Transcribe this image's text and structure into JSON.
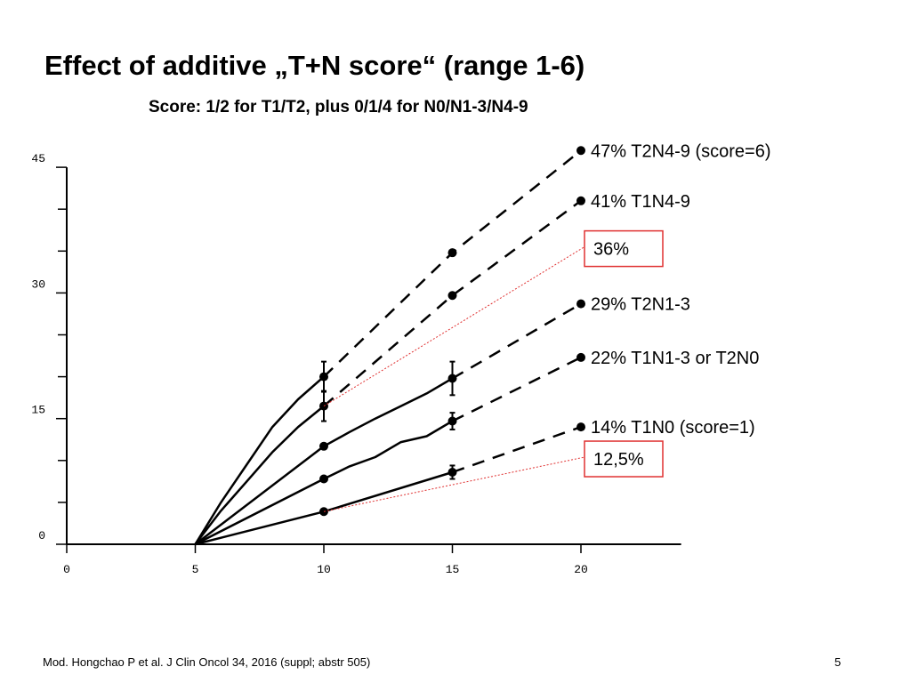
{
  "title": "Effect of additive „T+N score“ (range 1-6)",
  "subtitle": "Score: 1/2 for T1/T2, plus 0/1/4 for N0/N1-3/N4-9",
  "footer": {
    "reference": "Mod. Hongchao P et al. J Clin Oncol 34, 2016 (suppl; abstr 505)",
    "page_number": "5"
  },
  "chart_data": {
    "type": "line",
    "xlim": [
      0,
      24
    ],
    "ylim": [
      0,
      45
    ],
    "xticks": [
      0,
      5,
      10,
      15,
      20
    ],
    "yticks": [
      0,
      15,
      30,
      45
    ],
    "grid": false,
    "colors": {
      "series": "#000000",
      "highlight": "#e03030"
    },
    "series": [
      {
        "solid": [
          [
            5,
            0
          ],
          [
            6,
            5
          ],
          [
            7,
            9.5
          ],
          [
            8,
            14
          ],
          [
            9,
            17.3
          ],
          [
            10,
            20
          ]
        ],
        "dashed": [
          [
            10,
            20
          ],
          [
            15,
            34.8
          ],
          [
            20,
            47
          ]
        ],
        "markers": [
          [
            10,
            20
          ],
          [
            15,
            34.8
          ],
          [
            20,
            47
          ]
        ],
        "error_bars": [
          [
            10,
            18.2,
            21.8
          ]
        ],
        "label": "47% T2N4-9 (score=6)"
      },
      {
        "solid": [
          [
            5,
            0
          ],
          [
            6,
            4
          ],
          [
            7,
            7.5
          ],
          [
            8,
            11
          ],
          [
            9,
            14
          ],
          [
            10,
            16.5
          ]
        ],
        "dashed": [
          [
            10,
            16.5
          ],
          [
            15,
            29.7
          ],
          [
            20,
            41
          ]
        ],
        "markers": [
          [
            10,
            16.5
          ],
          [
            15,
            29.7
          ],
          [
            20,
            41
          ]
        ],
        "error_bars": [
          [
            10,
            14.7,
            18.3
          ]
        ],
        "label": "41% T1N4-9"
      },
      {
        "solid": [
          [
            5,
            0
          ],
          [
            10,
            11.7
          ],
          [
            11,
            13.4
          ],
          [
            12,
            15
          ],
          [
            13,
            16.5
          ],
          [
            14,
            18
          ],
          [
            15,
            19.8
          ]
        ],
        "dashed": [
          [
            15,
            19.8
          ],
          [
            20,
            28.7
          ]
        ],
        "markers": [
          [
            10,
            11.7
          ],
          [
            15,
            19.8
          ],
          [
            20,
            28.7
          ]
        ],
        "error_bars": [
          [
            15,
            17.8,
            21.8
          ]
        ],
        "label": "29% T2N1-3"
      },
      {
        "solid": [
          [
            5,
            0
          ],
          [
            10,
            7.8
          ],
          [
            11,
            9.3
          ],
          [
            12,
            10.4
          ],
          [
            13,
            12.2
          ],
          [
            14,
            12.9
          ],
          [
            15,
            14.7
          ]
        ],
        "dashed": [
          [
            15,
            14.7
          ],
          [
            20,
            22.3
          ]
        ],
        "markers": [
          [
            10,
            7.8
          ],
          [
            15,
            14.7
          ],
          [
            20,
            22.3
          ]
        ],
        "error_bars": [
          [
            15,
            13.7,
            15.7
          ]
        ],
        "label": "22% T1N1-3 or T2N0"
      },
      {
        "solid": [
          [
            5,
            0
          ],
          [
            10,
            3.9
          ],
          [
            15,
            8.6
          ]
        ],
        "dashed": [
          [
            15,
            8.6
          ],
          [
            20,
            14
          ]
        ],
        "markers": [
          [
            10,
            3.9
          ],
          [
            15,
            8.6
          ],
          [
            20,
            14
          ]
        ],
        "error_bars": [
          [
            15,
            7.8,
            9.4
          ]
        ],
        "label": "14% T1N0 (score=1)"
      }
    ],
    "highlights": [
      {
        "label": "36%",
        "from": [
          10,
          16.5
        ],
        "to": [
          20,
          35.5
        ]
      },
      {
        "label": "12,5%",
        "from": [
          10,
          3.9
        ],
        "to": [
          20,
          10.4
        ]
      }
    ]
  }
}
